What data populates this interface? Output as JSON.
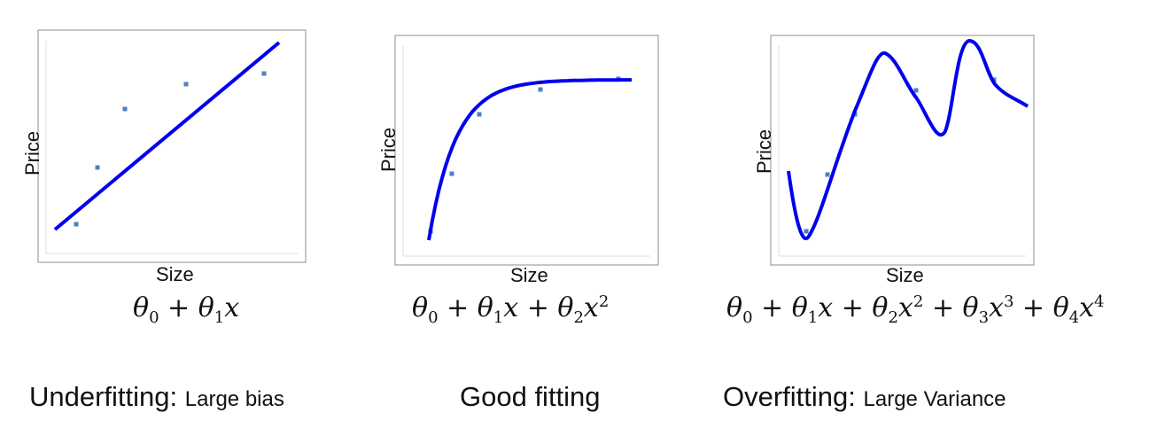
{
  "chart_data": [
    {
      "type": "scatter",
      "xlabel": "Size",
      "ylabel": "Price",
      "formula": "θ₀ + θ₁x",
      "points": [
        [
          1,
          1.0
        ],
        [
          2,
          3.4
        ],
        [
          3,
          5.0
        ],
        [
          5,
          5.8
        ],
        [
          8,
          6.2
        ]
      ],
      "fit": "linear",
      "fit_line": [
        [
          0,
          0.5
        ],
        [
          8,
          7.4
        ]
      ],
      "caption_main": "Underfitting:",
      "caption_small": "Large bias",
      "colors": {
        "curve": "#0000ee",
        "points": "#4f81bd"
      }
    },
    {
      "type": "scatter",
      "xlabel": "Size",
      "ylabel": "Price",
      "formula": "θ₀ + θ₁x + θ₂x²",
      "points": [
        [
          1,
          1.0
        ],
        [
          2,
          3.4
        ],
        [
          3,
          5.0
        ],
        [
          5,
          5.8
        ],
        [
          8,
          6.2
        ]
      ],
      "fit": "quadratic",
      "caption_main": "Good fitting",
      "caption_small": "",
      "colors": {
        "curve": "#0000ee",
        "points": "#4f81bd"
      }
    },
    {
      "type": "scatter",
      "xlabel": "Size",
      "ylabel": "Price",
      "formula": "θ₀ + θ₁x + θ₂x² + θ₃x³ + θ₄x⁴",
      "points": [
        [
          1,
          1.0
        ],
        [
          2,
          3.4
        ],
        [
          3,
          5.0
        ],
        [
          5,
          5.8
        ],
        [
          8,
          6.2
        ]
      ],
      "fit": "high-order polynomial",
      "caption_main": "Overfitting:",
      "caption_small": "Large Variance",
      "colors": {
        "curve": "#0000ee",
        "points": "#4f81bd"
      }
    }
  ]
}
